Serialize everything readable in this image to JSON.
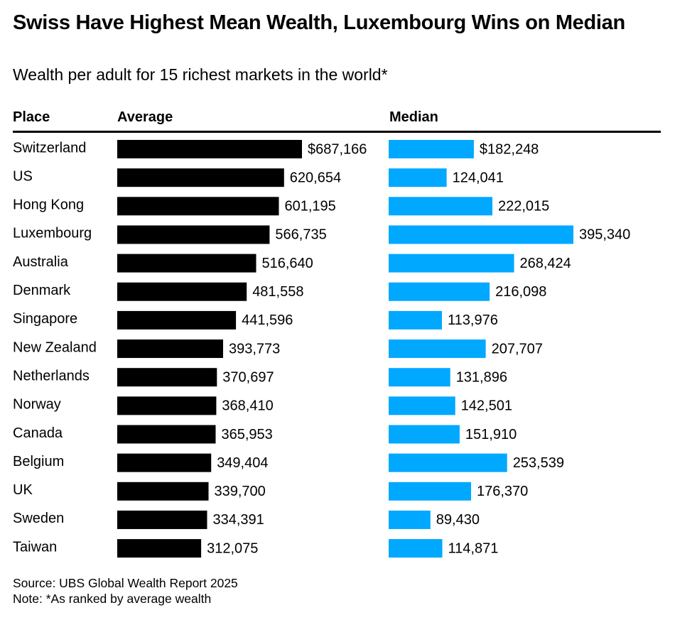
{
  "header": {
    "title": "Swiss Have Highest Mean Wealth, Luxembourg Wins on Median",
    "subtitle": "Wealth per adult for 15 richest markets in the world*"
  },
  "columns": {
    "place": "Place",
    "average": "Average",
    "median": "Median"
  },
  "footer": {
    "source": "Source: UBS Global Wealth Report 2025",
    "note": "Note: *As ranked by average wealth"
  },
  "colors": {
    "average_bar": "#000000",
    "median_bar": "#00a8ff"
  },
  "chart_data": {
    "type": "bar",
    "orientation": "horizontal",
    "title": "Swiss Have Highest Mean Wealth, Luxembourg Wins on Median",
    "subtitle": "Wealth per adult for 15 richest markets in the world*",
    "categories": [
      "Switzerland",
      "US",
      "Hong Kong",
      "Luxembourg",
      "Australia",
      "Denmark",
      "Singapore",
      "New Zealand",
      "Netherlands",
      "Norway",
      "Canada",
      "Belgium",
      "UK",
      "Sweden",
      "Taiwan"
    ],
    "series": [
      {
        "name": "Average",
        "values": [
          687166,
          620654,
          601195,
          566735,
          516640,
          481558,
          441596,
          393773,
          370697,
          368410,
          365953,
          349404,
          339700,
          334391,
          312075
        ],
        "labels": [
          "$687,166",
          "620,654",
          "601,195",
          "566,735",
          "516,640",
          "481,558",
          "441,596",
          "393,773",
          "370,697",
          "368,410",
          "365,953",
          "349,404",
          "339,700",
          "334,391",
          "312,075"
        ]
      },
      {
        "name": "Median",
        "values": [
          182248,
          124041,
          222015,
          395340,
          268424,
          216098,
          113976,
          207707,
          131896,
          142501,
          151910,
          253539,
          176370,
          89430,
          114871
        ],
        "labels": [
          "$182,248",
          "124,041",
          "222,015",
          "395,340",
          "268,424",
          "216,098",
          "113,976",
          "207,707",
          "131,896",
          "142,501",
          "151,910",
          "253,539",
          "176,370",
          "89,430",
          "114,871"
        ]
      }
    ],
    "xlim": [
      0,
      687166
    ],
    "xlabel": "",
    "ylabel": ""
  }
}
